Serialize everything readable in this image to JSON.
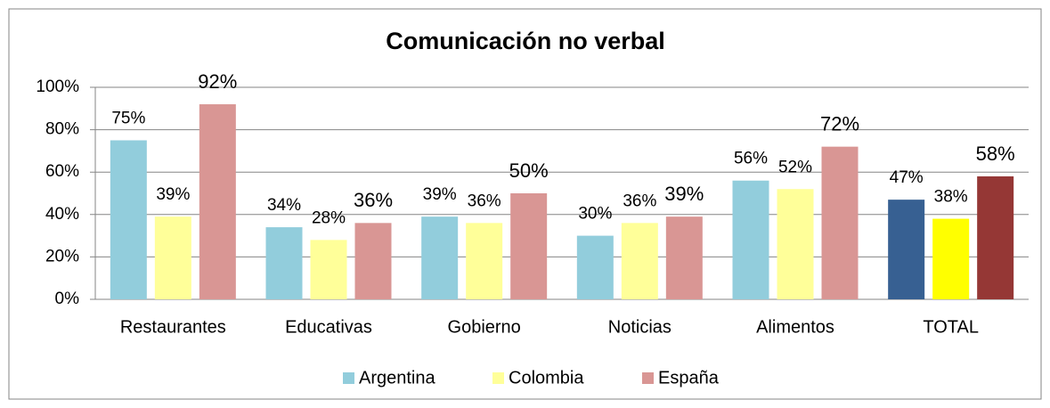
{
  "chart_data": {
    "type": "bar",
    "title": "Comunicación no verbal",
    "categories": [
      "Restaurantes",
      "Educativas",
      "Gobierno",
      "Noticias",
      "Alimentos",
      "TOTAL"
    ],
    "series": [
      {
        "name": "Argentina",
        "color": "#92cddc",
        "colors": [
          "#92cddc",
          "#92cddc",
          "#92cddc",
          "#92cddc",
          "#92cddc",
          "#376092"
        ],
        "values": [
          75,
          34,
          39,
          30,
          56,
          47
        ],
        "value_labels": [
          "75%",
          "34%",
          "39%",
          "30%",
          "56%",
          "47%"
        ]
      },
      {
        "name": "Colombia",
        "color": "#ffff99",
        "colors": [
          "#ffff99",
          "#ffff99",
          "#ffff99",
          "#ffff99",
          "#ffff99",
          "#ffff00"
        ],
        "values": [
          39,
          28,
          36,
          36,
          52,
          38
        ],
        "value_labels": [
          "39%",
          "28%",
          "36%",
          "36%",
          "52%",
          "38%"
        ]
      },
      {
        "name": "España",
        "color": "#d99694",
        "colors": [
          "#d99694",
          "#d99694",
          "#d99694",
          "#d99694",
          "#d99694",
          "#953735"
        ],
        "values": [
          92,
          36,
          50,
          39,
          72,
          58
        ],
        "value_labels": [
          "92%",
          "36%",
          "50%",
          "39%",
          "72%",
          "58%"
        ]
      }
    ],
    "ylim": [
      0,
      100
    ],
    "yticks": [
      {
        "value": 0,
        "label": "0%"
      },
      {
        "value": 20,
        "label": "20%"
      },
      {
        "value": 40,
        "label": "40%"
      },
      {
        "value": 60,
        "label": "60%"
      },
      {
        "value": 80,
        "label": "80%"
      },
      {
        "value": 100,
        "label": "100%"
      }
    ],
    "grid": true,
    "legend": "bottom"
  }
}
